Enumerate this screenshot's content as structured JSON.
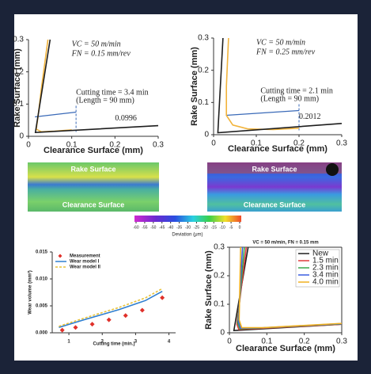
{
  "chart_data": [
    {
      "type": "line",
      "xlabel": "Clearance Surface (mm)",
      "ylabel": "Rake Surface (mm)",
      "xlim": [
        0,
        0.3
      ],
      "ylim": [
        0,
        0.3
      ],
      "xticks": [
        0,
        0.1,
        0.2,
        0.3
      ],
      "yticks": [
        0,
        0.1,
        0.2,
        0.3
      ],
      "annotations": [
        "VC = 50 m/min",
        "FN = 0.15 mm/rev",
        "Cutting time = 3.4 min",
        "(Length = 90 mm)",
        "0.0996"
      ],
      "series": [
        {
          "color": "#f2b43c",
          "x": [
            0.045,
            0.03,
            0.022,
            0.018,
            0.03,
            0.06,
            0.1
          ],
          "values": [
            0.3,
            0.15,
            0.06,
            0.022,
            0.014,
            0.016,
            0.02
          ]
        },
        {
          "color": "#1e1e1e",
          "x": [
            0.05,
            0.016,
            0.3
          ],
          "values": [
            0.3,
            0.012,
            0.033
          ]
        }
      ]
    },
    {
      "type": "line",
      "xlabel": "Clearance Surface (mm)",
      "ylabel": "Rake Surface (mm)",
      "xlim": [
        0,
        0.3
      ],
      "ylim": [
        0,
        0.3
      ],
      "xticks": [
        0,
        0.1,
        0.2,
        0.3
      ],
      "yticks": [
        0,
        0.1,
        0.2,
        0.3
      ],
      "annotations": [
        "VC = 50 m/min",
        "FN = 0.25 mm/rev",
        "Cutting time = 2.1 min",
        "(Length = 90 mm)",
        "0.2012"
      ],
      "series": [
        {
          "color": "#f2b43c",
          "x": [
            0.035,
            0.03,
            0.03,
            0.045,
            0.08,
            0.14,
            0.2
          ],
          "values": [
            0.3,
            0.15,
            0.06,
            0.03,
            0.018,
            0.016,
            0.02
          ]
        },
        {
          "color": "#1e1e1e",
          "x": [
            0.022,
            0.01,
            0.3
          ],
          "values": [
            0.3,
            0.006,
            0.035
          ]
        }
      ]
    },
    {
      "type": "scatter",
      "xlabel": "Cutting time (min.)",
      "ylabel": "Wear volume (mm³)",
      "xlim": [
        0.5,
        4.2
      ],
      "ylim": [
        0,
        0.015
      ],
      "xticks": [
        1,
        2,
        3,
        4
      ],
      "yticks": [
        {
          "value": 0,
          "label": "0.000"
        },
        {
          "value": 0.005,
          "label": "0.005"
        },
        {
          "value": 0.01,
          "label": "0.010"
        },
        {
          "value": 0.015,
          "label": "0.015"
        }
      ],
      "legend": "upper left",
      "series": [
        {
          "name": "Measurement",
          "color": "#e0302a",
          "marker": "diamond",
          "x": [
            0.8,
            1.2,
            1.7,
            2.2,
            2.7,
            3.2,
            3.8
          ],
          "values": [
            0.0005,
            0.001,
            0.0016,
            0.0024,
            0.0032,
            0.0042,
            0.0065
          ]
        },
        {
          "name": "Wear model I",
          "color": "#2f7fd0",
          "x": [
            0.7,
            1.5,
            2.5,
            3.3,
            3.8
          ],
          "values": [
            0.001,
            0.0025,
            0.0043,
            0.006,
            0.0077
          ]
        },
        {
          "name": "Wear model II",
          "color": "#e8c23a",
          "style": "dashed",
          "x": [
            0.7,
            1.5,
            2.5,
            3.3,
            3.8
          ],
          "values": [
            0.0012,
            0.0028,
            0.0047,
            0.0065,
            0.0082
          ]
        }
      ]
    },
    {
      "type": "line",
      "title": "VC = 50 m/min, FN = 0.15 mm",
      "xlabel": "Clearance Surface (mm)",
      "ylabel": "Rake Surface (mm)",
      "xlim": [
        0,
        0.3
      ],
      "ylim": [
        0,
        0.3
      ],
      "xticks": [
        0,
        0.1,
        0.2,
        0.3
      ],
      "yticks": [
        0,
        0.1,
        0.2,
        0.3
      ],
      "legend": "upper right",
      "series": [
        {
          "name": "New",
          "color": "#1e1e1e",
          "x": [
            0.05,
            0.012,
            0.3
          ],
          "values": [
            0.3,
            0.008,
            0.03
          ]
        },
        {
          "name": "1.5 min",
          "color": "#e03a3a",
          "x": [
            0.045,
            0.02,
            0.025,
            0.06,
            0.3
          ],
          "values": [
            0.3,
            0.03,
            0.012,
            0.014,
            0.03
          ]
        },
        {
          "name": "2.3 min",
          "color": "#3aa84a",
          "x": [
            0.04,
            0.022,
            0.028,
            0.07,
            0.3
          ],
          "values": [
            0.3,
            0.035,
            0.014,
            0.016,
            0.031
          ]
        },
        {
          "name": "3.4 min",
          "color": "#3a5ee0",
          "x": [
            0.035,
            0.024,
            0.03,
            0.08,
            0.3
          ],
          "values": [
            0.3,
            0.04,
            0.016,
            0.017,
            0.032
          ]
        },
        {
          "name": "4.0 min",
          "color": "#f0b020",
          "x": [
            0.03,
            0.026,
            0.033,
            0.09,
            0.3
          ],
          "values": [
            0.3,
            0.045,
            0.018,
            0.018,
            0.033
          ]
        }
      ]
    }
  ],
  "surface_maps": {
    "labels": [
      "Rake Surface",
      "Clearance Surface",
      "Rake Surface",
      "Clearance Surface"
    ],
    "colorbar": {
      "ticks": [
        -60,
        -55,
        -50,
        -45,
        -40,
        -35,
        -30,
        -25,
        -20,
        -15,
        -10,
        -5,
        0
      ],
      "label": "Deviation (μm)"
    }
  }
}
